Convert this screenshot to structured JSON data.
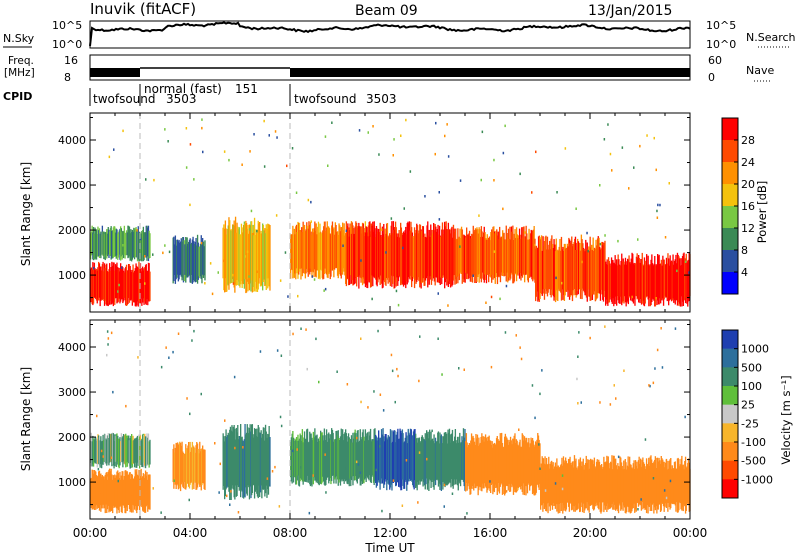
{
  "header": {
    "station": "Inuvik (fitACF)",
    "beam": "Beam 09",
    "date": "13/Jan/2015"
  },
  "noise_panel": {
    "left_label": "N.Sky",
    "left_ticks": [
      "10^5",
      "10^0"
    ],
    "right_label": "N.Search",
    "right_ticks": [
      "10^5",
      "10^0"
    ]
  },
  "freq_panel": {
    "left_label_line1": "Freq.",
    "left_label_line2": "[MHz]",
    "left_ticks": [
      "16",
      "8"
    ],
    "right_label": "Nave",
    "right_ticks": [
      "60",
      "0"
    ]
  },
  "cpid_panel": {
    "label": "CPID",
    "modes": [
      {
        "name": "twofsound",
        "id": "3503",
        "start_hour": 0,
        "end_hour": 2.0
      },
      {
        "name": "normal (fast)",
        "id": "151",
        "start_hour": 2.0,
        "end_hour": 8.0
      },
      {
        "name": "twofsound",
        "id": "3503",
        "start_hour": 8.0,
        "end_hour": 24.0
      }
    ]
  },
  "power_panel": {
    "ylabel": "Slant Range [km]",
    "yticks": [
      "1000",
      "2000",
      "3000",
      "4000"
    ],
    "colorbar_label": "Power [dB]",
    "colorbar_ticks": [
      "28",
      "24",
      "20",
      "16",
      "12",
      "8",
      "4"
    ],
    "colorbar_colors": [
      "#ff0000",
      "#ff4a00",
      "#ff9000",
      "#f4c20d",
      "#79c843",
      "#3a8a55",
      "#2a4fa0",
      "#0000ff"
    ]
  },
  "velocity_panel": {
    "ylabel": "Slant Range [km]",
    "yticks": [
      "1000",
      "2000",
      "3000",
      "4000"
    ],
    "colorbar_label": "Velocity [m s⁻¹]",
    "colorbar_ticks": [
      "1000",
      "500",
      "100",
      "25",
      "-25",
      "-100",
      "-500",
      "-1000"
    ],
    "colorbar_colors": [
      "#1f3fb0",
      "#2d6f9c",
      "#3c8a6a",
      "#5fbf3a",
      "#c8c8c8",
      "#f7b52b",
      "#ff8a1a",
      "#ff4a00",
      "#ff0000"
    ]
  },
  "xaxis": {
    "label": "Time UT",
    "ticks": [
      "00:00",
      "04:00",
      "08:00",
      "12:00",
      "16:00",
      "20:00",
      "00:00"
    ]
  },
  "chart_data": {
    "type": "heatmap",
    "title": "Inuvik (fitACF)  Beam 09  13/Jan/2015",
    "x": {
      "label": "Time UT",
      "range_hours": [
        0,
        24
      ]
    },
    "y": {
      "label": "Slant Range [km]",
      "range_km": [
        180,
        4600
      ]
    },
    "power_dB": {
      "range": [
        0,
        30
      ],
      "regions": [
        {
          "t_start": 0.0,
          "t_end": 2.4,
          "r_min": 300,
          "r_max": 1300,
          "value": 28
        },
        {
          "t_start": 0.0,
          "t_end": 2.4,
          "r_min": 1300,
          "r_max": 2100,
          "value": 10
        },
        {
          "t_start": 3.3,
          "t_end": 4.6,
          "r_min": 800,
          "r_max": 1900,
          "value": 8
        },
        {
          "t_start": 5.3,
          "t_end": 7.2,
          "r_min": 600,
          "r_max": 2300,
          "value": 18
        },
        {
          "t_start": 8.0,
          "t_end": 11.4,
          "r_min": 900,
          "r_max": 2200,
          "value": 22
        },
        {
          "t_start": 10.2,
          "t_end": 14.6,
          "r_min": 700,
          "r_max": 2200,
          "value": 26
        },
        {
          "t_start": 14.6,
          "t_end": 17.8,
          "r_min": 800,
          "r_max": 2100,
          "value": 24
        },
        {
          "t_start": 17.8,
          "t_end": 20.6,
          "r_min": 400,
          "r_max": 1900,
          "value": 24
        },
        {
          "t_start": 20.6,
          "t_end": 24.0,
          "r_min": 300,
          "r_max": 1500,
          "value": 28
        }
      ]
    },
    "velocity_ms": {
      "range": [
        -1000,
        1000
      ],
      "regions": [
        {
          "t_start": 0.0,
          "t_end": 2.4,
          "r_min": 300,
          "r_max": 1300,
          "value": -250
        },
        {
          "t_start": 0.0,
          "t_end": 2.4,
          "r_min": 1300,
          "r_max": 2100,
          "value": 80
        },
        {
          "t_start": 3.3,
          "t_end": 4.6,
          "r_min": 800,
          "r_max": 1900,
          "value": -150
        },
        {
          "t_start": 5.3,
          "t_end": 7.2,
          "r_min": 600,
          "r_max": 2300,
          "value": 200
        },
        {
          "t_start": 8.0,
          "t_end": 11.4,
          "r_min": 900,
          "r_max": 2200,
          "value": 150
        },
        {
          "t_start": 11.4,
          "t_end": 13.0,
          "r_min": 800,
          "r_max": 2200,
          "value": 700
        },
        {
          "t_start": 13.0,
          "t_end": 15.0,
          "r_min": 800,
          "r_max": 2200,
          "value": 200
        },
        {
          "t_start": 15.0,
          "t_end": 18.0,
          "r_min": 700,
          "r_max": 2100,
          "value": -250
        },
        {
          "t_start": 18.0,
          "t_end": 24.0,
          "r_min": 300,
          "r_max": 1600,
          "value": -300
        }
      ]
    }
  }
}
